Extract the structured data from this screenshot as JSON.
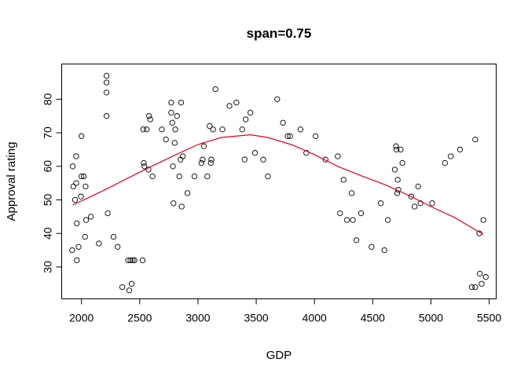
{
  "chart_data": {
    "type": "scatter",
    "title": "span=0.75",
    "xlabel": "GDP",
    "ylabel": "Approval rating",
    "xlim": [
      1830,
      5560
    ],
    "ylim": [
      20.5,
      90.5
    ],
    "xticks": [
      2000,
      2500,
      3000,
      3500,
      4000,
      4500,
      5000,
      5500
    ],
    "yticks": [
      30,
      40,
      50,
      60,
      70,
      80
    ],
    "grid": false,
    "legend": "none",
    "point_color": "#000000",
    "curve_color": "#E8001C",
    "points": [
      [
        1920,
        35
      ],
      [
        1925,
        60
      ],
      [
        1930,
        54
      ],
      [
        1945,
        50
      ],
      [
        1955,
        55
      ],
      [
        1955,
        63
      ],
      [
        1960,
        43
      ],
      [
        1960,
        32
      ],
      [
        1975,
        36
      ],
      [
        1995,
        51
      ],
      [
        2000,
        69
      ],
      [
        2000,
        57
      ],
      [
        2020,
        57
      ],
      [
        2035,
        54
      ],
      [
        2030,
        39
      ],
      [
        2040,
        44
      ],
      [
        2080,
        45
      ],
      [
        2150,
        37
      ],
      [
        2215,
        87
      ],
      [
        2215,
        85
      ],
      [
        2215,
        82
      ],
      [
        2215,
        75
      ],
      [
        2225,
        46
      ],
      [
        2275,
        39
      ],
      [
        2310,
        36
      ],
      [
        2350,
        24
      ],
      [
        2400,
        32
      ],
      [
        2410,
        23
      ],
      [
        2420,
        32
      ],
      [
        2430,
        25
      ],
      [
        2440,
        32
      ],
      [
        2455,
        32
      ],
      [
        2525,
        32
      ],
      [
        2530,
        71
      ],
      [
        2535,
        61
      ],
      [
        2540,
        60
      ],
      [
        2560,
        71
      ],
      [
        2575,
        59
      ],
      [
        2580,
        75
      ],
      [
        2590,
        74
      ],
      [
        2610,
        57
      ],
      [
        2690,
        71
      ],
      [
        2725,
        68
      ],
      [
        2770,
        79
      ],
      [
        2770,
        76
      ],
      [
        2780,
        73
      ],
      [
        2785,
        60
      ],
      [
        2790,
        49
      ],
      [
        2800,
        67
      ],
      [
        2805,
        71
      ],
      [
        2820,
        75
      ],
      [
        2840,
        57
      ],
      [
        2850,
        62
      ],
      [
        2855,
        79
      ],
      [
        2860,
        48
      ],
      [
        2870,
        63
      ],
      [
        2910,
        52
      ],
      [
        2970,
        57
      ],
      [
        3030,
        61
      ],
      [
        3040,
        62
      ],
      [
        3050,
        66
      ],
      [
        3080,
        57
      ],
      [
        3100,
        72
      ],
      [
        3110,
        61
      ],
      [
        3115,
        62
      ],
      [
        3130,
        71
      ],
      [
        3150,
        83
      ],
      [
        3210,
        71
      ],
      [
        3270,
        78
      ],
      [
        3330,
        79
      ],
      [
        3380,
        71
      ],
      [
        3400,
        62
      ],
      [
        3410,
        74
      ],
      [
        3450,
        76
      ],
      [
        3490,
        64
      ],
      [
        3560,
        62
      ],
      [
        3600,
        57
      ],
      [
        3680,
        80
      ],
      [
        3730,
        73
      ],
      [
        3770,
        69
      ],
      [
        3790,
        69
      ],
      [
        3880,
        71
      ],
      [
        3930,
        64
      ],
      [
        4010,
        69
      ],
      [
        4095,
        62
      ],
      [
        4200,
        63
      ],
      [
        4220,
        46
      ],
      [
        4250,
        56
      ],
      [
        4280,
        44
      ],
      [
        4320,
        52
      ],
      [
        4330,
        44
      ],
      [
        4360,
        38
      ],
      [
        4400,
        46
      ],
      [
        4490,
        36
      ],
      [
        4570,
        49
      ],
      [
        4600,
        35
      ],
      [
        4630,
        44
      ],
      [
        4690,
        59
      ],
      [
        4700,
        66
      ],
      [
        4705,
        65
      ],
      [
        4710,
        52
      ],
      [
        4715,
        56
      ],
      [
        4720,
        53
      ],
      [
        4740,
        65
      ],
      [
        4755,
        61
      ],
      [
        4830,
        51
      ],
      [
        4860,
        48
      ],
      [
        4890,
        54
      ],
      [
        4910,
        49
      ],
      [
        5010,
        49
      ],
      [
        5120,
        61
      ],
      [
        5170,
        63
      ],
      [
        5250,
        65
      ],
      [
        5350,
        24
      ],
      [
        5380,
        24
      ],
      [
        5380,
        68
      ],
      [
        5415,
        40
      ],
      [
        5420,
        28
      ],
      [
        5435,
        25
      ],
      [
        5450,
        44
      ],
      [
        5470,
        27
      ]
    ],
    "smooth_curve": [
      [
        1925,
        48.5
      ],
      [
        2050,
        50.5
      ],
      [
        2200,
        53
      ],
      [
        2400,
        56.5
      ],
      [
        2600,
        60
      ],
      [
        2800,
        63.3
      ],
      [
        3000,
        66.5
      ],
      [
        3200,
        68.6
      ],
      [
        3450,
        69.4
      ],
      [
        3600,
        68.6
      ],
      [
        3800,
        66.5
      ],
      [
        4000,
        63.5
      ],
      [
        4200,
        60
      ],
      [
        4400,
        57.2
      ],
      [
        4600,
        54.6
      ],
      [
        4800,
        51.5
      ],
      [
        5000,
        48
      ],
      [
        5200,
        44.8
      ],
      [
        5450,
        39.7
      ]
    ]
  }
}
